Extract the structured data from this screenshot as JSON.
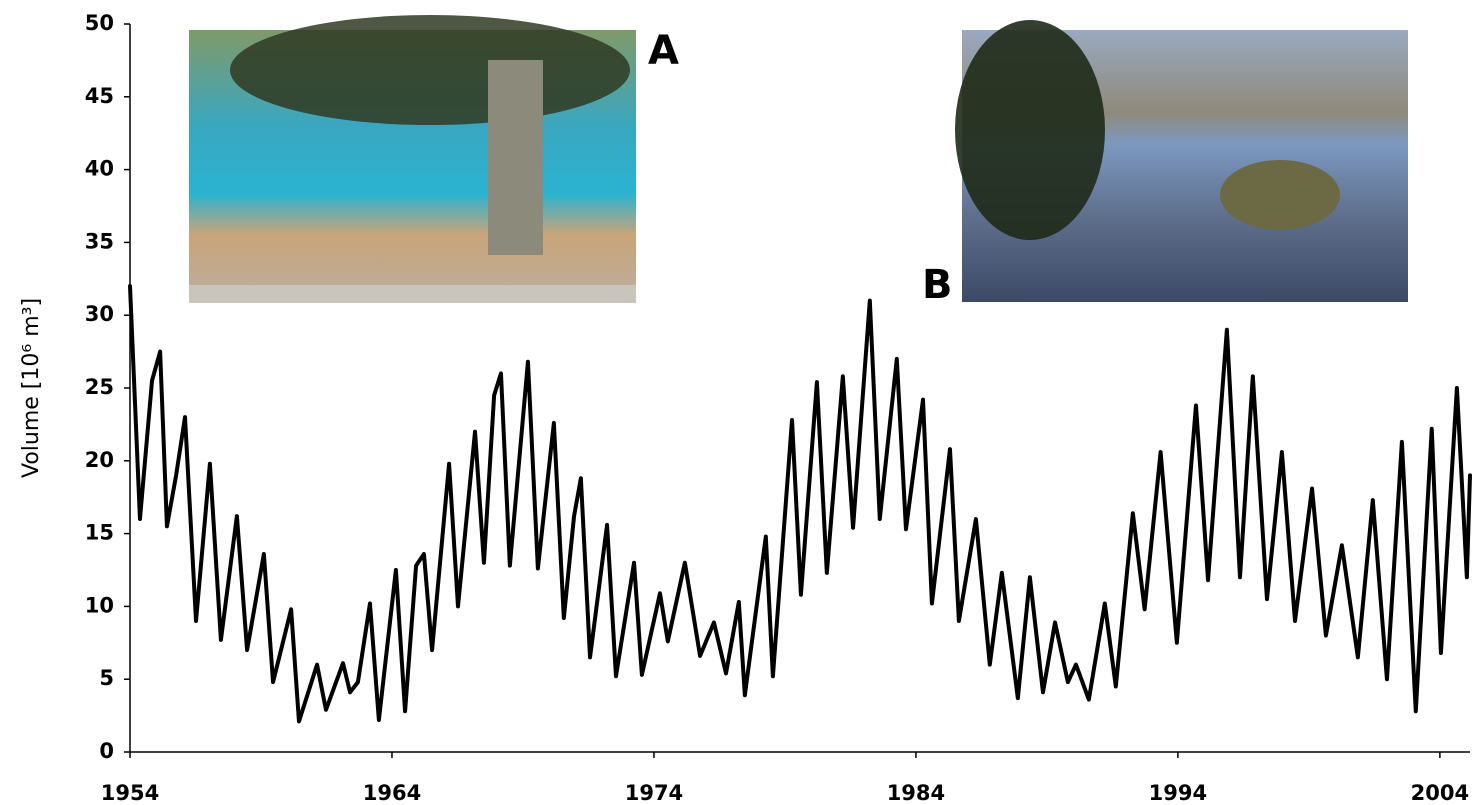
{
  "chart_data": {
    "type": "line",
    "ylabel": "Volume [10⁶ m³]",
    "annotations": [
      "A",
      "B"
    ],
    "xlim": [
      1954,
      2005.15
    ],
    "xticks": [
      1954,
      1964,
      1974,
      1984,
      1994,
      2004
    ],
    "ylim": [
      0,
      50
    ],
    "yticks": [
      0,
      5,
      10,
      15,
      20,
      25,
      30,
      35,
      40,
      45,
      50
    ],
    "grid": false,
    "series": [
      {
        "color": "#000000",
        "x": [
          1954.0,
          1954.38,
          1954.84,
          1955.15,
          1955.41,
          1955.76,
          1956.1,
          1956.52,
          1957.05,
          1957.47,
          1958.08,
          1958.47,
          1959.11,
          1959.46,
          1960.15,
          1960.45,
          1961.14,
          1961.48,
          1962.13,
          1962.4,
          1962.7,
          1963.16,
          1963.5,
          1964.15,
          1964.5,
          1964.92,
          1965.22,
          1965.53,
          1966.18,
          1966.52,
          1967.17,
          1967.51,
          1967.9,
          1968.16,
          1968.5,
          1969.19,
          1969.57,
          1970.18,
          1970.56,
          1970.95,
          1971.21,
          1971.56,
          1972.21,
          1972.55,
          1973.24,
          1973.54,
          1974.23,
          1974.53,
          1975.18,
          1975.76,
          1976.29,
          1976.75,
          1977.24,
          1977.47,
          1978.27,
          1978.54,
          1979.27,
          1979.61,
          1980.22,
          1980.6,
          1981.21,
          1981.6,
          1982.24,
          1982.62,
          1983.27,
          1983.62,
          1984.27,
          1984.61,
          1985.3,
          1985.64,
          1986.29,
          1986.82,
          1987.28,
          1987.89,
          1988.35,
          1988.85,
          1989.31,
          1989.8,
          1990.11,
          1990.6,
          1991.21,
          1991.63,
          1992.28,
          1992.73,
          1993.34,
          1993.96,
          1994.69,
          1995.15,
          1995.87,
          1996.37,
          1996.86,
          1997.4,
          1997.97,
          1998.47,
          1999.12,
          1999.65,
          2000.26,
          2000.87,
          2001.44,
          2001.98,
          2002.55,
          2003.08,
          2003.69,
          2004.04,
          2004.65,
          2005.03,
          2005.15
        ],
        "values": [
          32,
          16,
          25.5,
          27.5,
          15.5,
          19,
          23,
          9,
          19.8,
          7.7,
          16.2,
          7,
          13.6,
          4.8,
          9.8,
          2.1,
          6,
          2.9,
          6.1,
          4.1,
          4.8,
          10.2,
          2.2,
          12.5,
          2.8,
          12.8,
          13.6,
          7,
          19.8,
          10,
          22,
          13,
          24.5,
          26,
          12.8,
          26.8,
          12.6,
          22.6,
          9.2,
          16.2,
          18.8,
          6.5,
          15.6,
          5.2,
          13,
          5.3,
          10.9,
          7.6,
          13,
          6.6,
          8.9,
          5.4,
          10.3,
          3.9,
          14.8,
          5.2,
          22.8,
          10.8,
          25.4,
          12.3,
          25.8,
          15.4,
          31,
          16,
          27,
          15.3,
          24.2,
          10.2,
          20.8,
          9,
          16,
          6,
          12.3,
          3.7,
          12,
          4.1,
          8.9,
          4.8,
          6,
          3.6,
          10.2,
          4.5,
          16.4,
          9.8,
          20.6,
          7.5,
          23.8,
          11.8,
          29,
          12,
          25.8,
          10.5,
          20.6,
          9,
          18.1,
          8,
          14.2,
          6.5,
          17.3,
          5,
          21.3,
          2.8,
          22.2,
          6.8,
          25,
          12,
          19
        ]
      }
    ]
  }
}
